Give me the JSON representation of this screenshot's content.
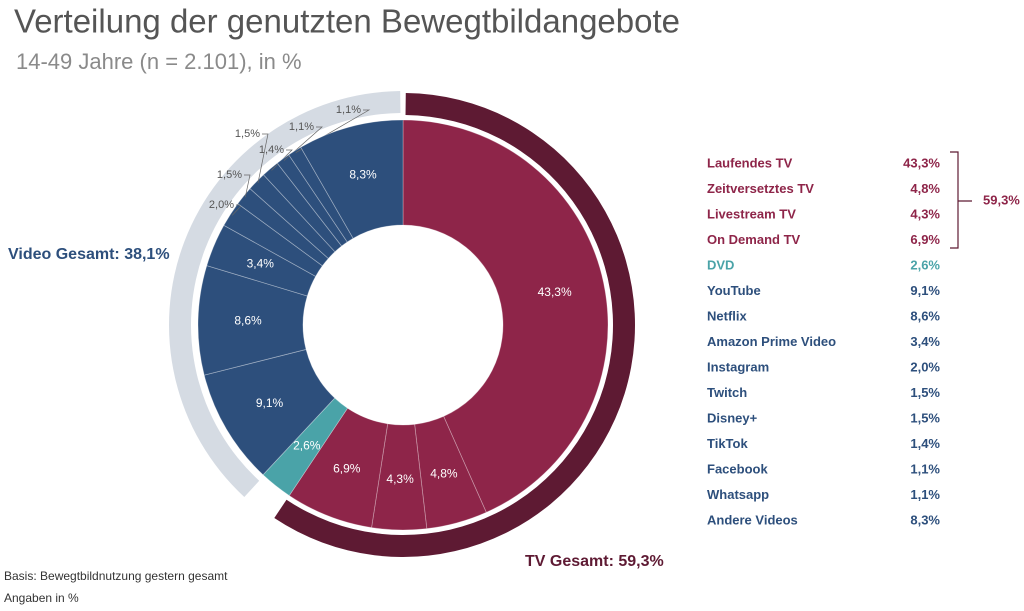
{
  "chart_data": {
    "type": "donut",
    "title": "Verteilung der genutzten Bewegtbildangebote",
    "subtitle": "14-49 Jahre (n = 2.101), in %",
    "categories": [
      "Laufendes TV",
      "Zeitversetztes TV",
      "Livestream TV",
      "On Demand TV",
      "DVD",
      "YouTube",
      "Netflix",
      "Amazon Prime Video",
      "Instagram",
      "Twitch",
      "Disney+",
      "TikTok",
      "Facebook",
      "Whatsapp",
      "Andere Videos"
    ],
    "values": [
      43.3,
      4.8,
      4.3,
      6.9,
      2.6,
      9.1,
      8.6,
      3.4,
      2.0,
      1.5,
      1.5,
      1.4,
      1.1,
      1.1,
      8.3
    ],
    "value_labels": [
      "43,3%",
      "4,8%",
      "4,3%",
      "6,9%",
      "2,6%",
      "9,1%",
      "8,6%",
      "3,4%",
      "2,0%",
      "1,5%",
      "1,5%",
      "1,4%",
      "1,1%",
      "1,1%",
      "8,3%"
    ],
    "colors": [
      "#8e2549",
      "#8e2549",
      "#8e2549",
      "#8e2549",
      "#4aa3a8",
      "#2d4f7c",
      "#2d4f7c",
      "#2d4f7c",
      "#2d4f7c",
      "#2d4f7c",
      "#2d4f7c",
      "#2d4f7c",
      "#2d4f7c",
      "#2d4f7c",
      "#2d4f7c"
    ],
    "groups": [
      {
        "label": "TV Gesamt: 59,3%",
        "value": 59.3,
        "color": "#5e1a33",
        "bracket_label": "59,3%"
      },
      {
        "label": "Video Gesamt: 38,1%",
        "value": 38.1,
        "color": "#d5dbe3"
      }
    ],
    "footnotes": [
      "Basis: Bewegtbildnutzung gestern gesamt",
      "Angaben in %"
    ]
  }
}
